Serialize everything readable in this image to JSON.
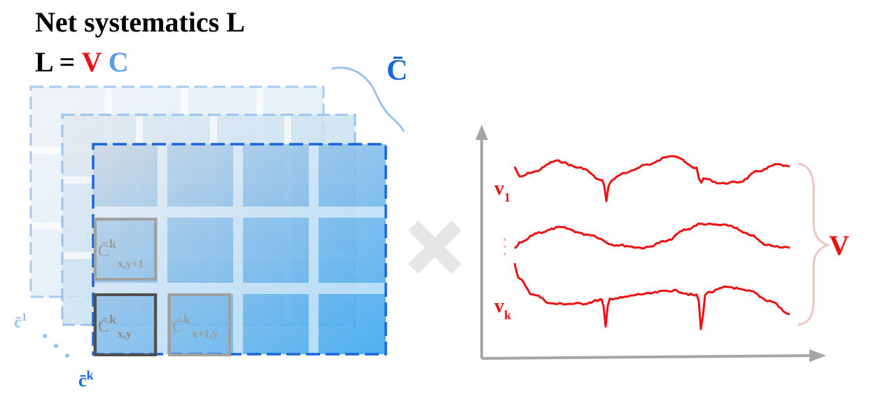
{
  "title": "Net systematics L",
  "equation": {
    "lhs": "L",
    "equals": "=",
    "v": "V",
    "c": "C"
  },
  "labels": {
    "c_bar": "C̄",
    "c1_base": "c̄",
    "c1_sup": "1",
    "ck_base": "c̄",
    "ck_sup": "k",
    "cell_xy1_base": "C̄",
    "cell_xy1_sup": "k",
    "cell_xy1_sub": "x,y+1",
    "cell_xy_base": "C̄",
    "cell_xy_sup": "k",
    "cell_xy_sub": "x,y",
    "cell_x1y_base": "C̄",
    "cell_x1y_sup": "k",
    "cell_x1y_sub": "x+1,y",
    "v1_base": "v",
    "v1_sub": "1",
    "vdots": "⋮",
    "vk_base": "v",
    "vk_sub": "k",
    "V": "V"
  },
  "colors": {
    "red": "#ee1111",
    "blue": "#1a66dd",
    "lightblue": "#9cc2ee",
    "gray": "#999999",
    "axis": "#a6a6a6",
    "multiply": "#e6e6e6"
  },
  "icons": {
    "multiply": "multiply-icon"
  }
}
